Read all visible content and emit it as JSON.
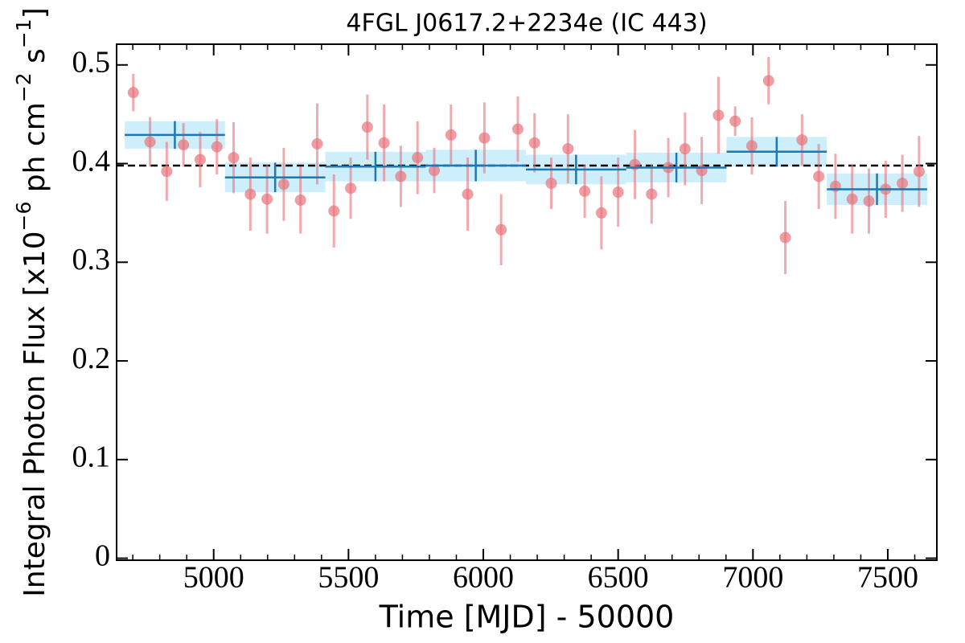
{
  "chart_data": {
    "type": "errorbar",
    "title": "4FGL J0617.2+2234e (IC 443)",
    "xlabel": "Time [MJD] - 50000",
    "ylabel": [
      "Integral Photon Flux [x10",
      "−6",
      " ph cm",
      "−2",
      " s",
      "−1",
      "]"
    ],
    "xlim": [
      4640,
      7682
    ],
    "ylim": [
      -0.002,
      0.521
    ],
    "xticks": [
      5000,
      5500,
      6000,
      6500,
      7000,
      7500
    ],
    "yticks": [
      0,
      0.1,
      0.2,
      0.3,
      0.4,
      0.5
    ],
    "mean": 0.398,
    "mean_color": "#000000",
    "points": {
      "color": "#e8737a",
      "x": [
        4702,
        4764,
        4826,
        4888,
        4950,
        5012,
        5074,
        5136,
        5198,
        5260,
        5322,
        5384,
        5446,
        5508,
        5570,
        5632,
        5694,
        5756,
        5818,
        5880,
        5942,
        6004,
        6066,
        6128,
        6190,
        6252,
        6314,
        6376,
        6438,
        6500,
        6562,
        6624,
        6686,
        6748,
        6810,
        6872,
        6934,
        6996,
        7058,
        7120,
        7182,
        7244,
        7306,
        7368,
        7430,
        7492,
        7554,
        7616
      ],
      "values": [
        0.472,
        0.422,
        0.392,
        0.419,
        0.404,
        0.417,
        0.406,
        0.369,
        0.364,
        0.379,
        0.363,
        0.42,
        0.352,
        0.375,
        0.437,
        0.421,
        0.387,
        0.406,
        0.393,
        0.429,
        0.369,
        0.426,
        0.333,
        0.435,
        0.421,
        0.38,
        0.415,
        0.372,
        0.35,
        0.371,
        0.399,
        0.369,
        0.396,
        0.415,
        0.393,
        0.449,
        0.443,
        0.418,
        0.484,
        0.325,
        0.424,
        0.387,
        0.377,
        0.364,
        0.362,
        0.374,
        0.38,
        0.392
      ],
      "errors": [
        0.019,
        0.025,
        0.03,
        0.022,
        0.028,
        0.028,
        0.036,
        0.037,
        0.035,
        0.037,
        0.034,
        0.041,
        0.037,
        0.031,
        0.033,
        0.039,
        0.031,
        0.037,
        0.023,
        0.031,
        0.037,
        0.036,
        0.036,
        0.033,
        0.03,
        0.026,
        0.035,
        0.027,
        0.037,
        0.035,
        0.035,
        0.03,
        0.03,
        0.037,
        0.034,
        0.039,
        0.015,
        0.029,
        0.024,
        0.037,
        0.026,
        0.033,
        0.033,
        0.035,
        0.033,
        0.029,
        0.029,
        0.036
      ]
    },
    "binned": {
      "color": "#1f77b4",
      "band_color": "#cdeefb",
      "bins": [
        4670,
        5042,
        5414,
        5786,
        6158,
        6530,
        6902,
        7274,
        7646
      ],
      "values": [
        0.429,
        0.386,
        0.397,
        0.398,
        0.394,
        0.396,
        0.412,
        0.374
      ],
      "errors": [
        0.014,
        0.015,
        0.015,
        0.016,
        0.015,
        0.015,
        0.015,
        0.016
      ]
    }
  }
}
